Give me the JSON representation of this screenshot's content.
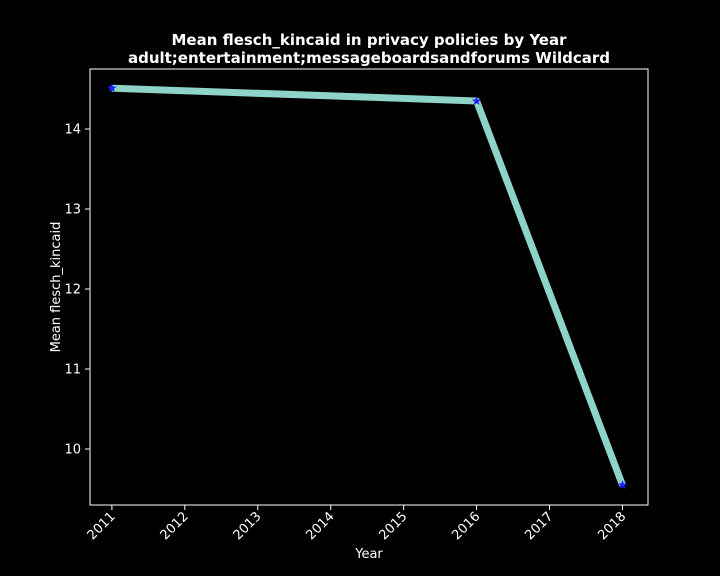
{
  "chart_data": {
    "type": "line",
    "title": "Mean flesch_kincaid in privacy policies by Year",
    "subtitle": "adult;entertainment;messageboardsandforums Wildcard",
    "xlabel": "Year",
    "ylabel": "Mean flesch_kincaid",
    "x_ticks": [
      2011,
      2012,
      2013,
      2014,
      2015,
      2016,
      2017,
      2018
    ],
    "y_ticks": [
      10,
      11,
      12,
      13,
      14
    ],
    "xlim": [
      2010.7,
      2018.35
    ],
    "ylim": [
      9.3,
      14.75
    ],
    "grid": false,
    "series": [
      {
        "x": [
          2011,
          2016,
          2018
        ],
        "values": [
          14.51,
          14.35,
          9.55
        ],
        "line_color": "#8dd3c7",
        "marker": "star",
        "marker_color": "#1f1fff"
      }
    ],
    "background": "#000000",
    "foreground": "#ffffff"
  }
}
